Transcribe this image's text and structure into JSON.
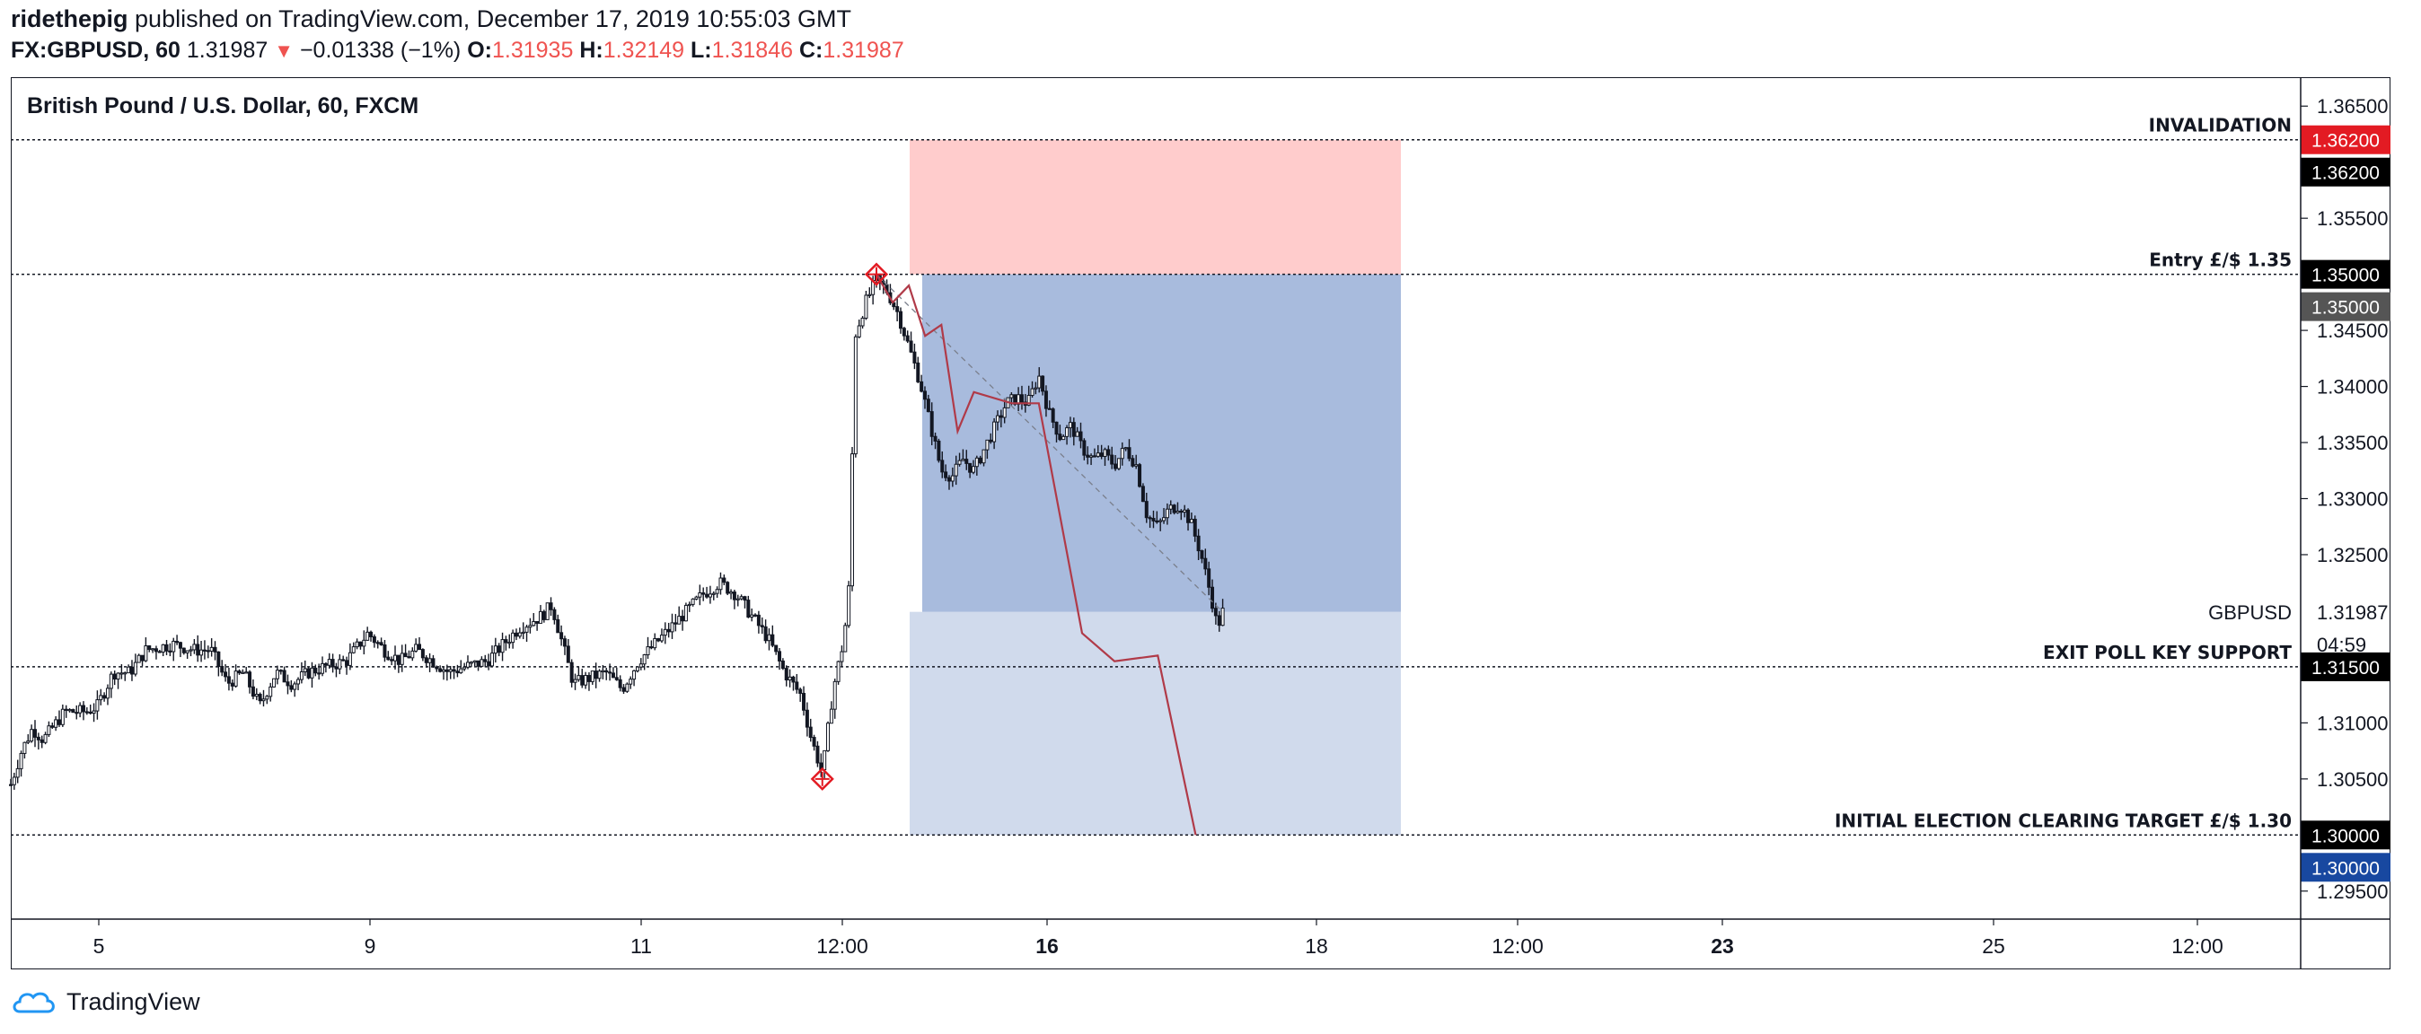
{
  "header": {
    "author": "ridethepig",
    "published_text": "published on TradingView.com, December 17, 2019 10:55:03 GMT",
    "symbol": "FX:GBPUSD, 60",
    "last": "1.31987",
    "change_arrow": "▼",
    "change": "−0.01338 (−1%)",
    "o_label": "O:",
    "o_value": "1.31935",
    "h_label": "H:",
    "h_value": "1.32149",
    "l_label": "L:",
    "l_value": "1.31846",
    "c_label": "C:",
    "c_value": "1.31987"
  },
  "chart_title": "British Pound / U.S. Dollar, 60, FXCM",
  "footer": {
    "brand": "TradingView"
  },
  "colors": {
    "risk_zone": "#ffcccc",
    "reward_zone": "#a8bbdd",
    "target_zone": "#d0daec",
    "projection_line": "#b03a48",
    "invalidation_badge": "#e31b23",
    "target_badge": "#1848a0",
    "entry_badge_secondary": "#555555",
    "label_badge": "#000000",
    "marker": "#e31b23"
  },
  "chart_data": {
    "type": "candlestick",
    "y_range": [
      1.2925,
      1.3675
    ],
    "x_tick_labels": [
      "5",
      "9",
      "11",
      "12:00",
      "16",
      "18",
      "12:00",
      "23",
      "25",
      "12:00"
    ],
    "y_tick_labels": [
      "1.36500",
      "1.35500",
      "1.34500",
      "1.34000",
      "1.33500",
      "1.33000",
      "1.32500",
      "1.31000",
      "1.30500",
      "1.29500"
    ],
    "y_tick_values": [
      1.365,
      1.355,
      1.345,
      1.34,
      1.335,
      1.33,
      1.325,
      1.31,
      1.305,
      1.295
    ],
    "price_path": [
      {
        "t": 0,
        "p": 1.3045
      },
      {
        "t": 0.01,
        "p": 1.3075
      },
      {
        "t": 0.02,
        "p": 1.3095
      },
      {
        "t": 0.03,
        "p": 1.3085
      },
      {
        "t": 0.05,
        "p": 1.311
      },
      {
        "t": 0.07,
        "p": 1.311
      },
      {
        "t": 0.08,
        "p": 1.3115
      },
      {
        "t": 0.095,
        "p": 1.3145
      },
      {
        "t": 0.11,
        "p": 1.3145
      },
      {
        "t": 0.125,
        "p": 1.3165
      },
      {
        "t": 0.15,
        "p": 1.317
      },
      {
        "t": 0.17,
        "p": 1.3165
      },
      {
        "t": 0.185,
        "p": 1.3165
      },
      {
        "t": 0.2,
        "p": 1.3135
      },
      {
        "t": 0.215,
        "p": 1.3145
      },
      {
        "t": 0.23,
        "p": 1.3115
      },
      {
        "t": 0.245,
        "p": 1.3145
      },
      {
        "t": 0.26,
        "p": 1.3135
      },
      {
        "t": 0.275,
        "p": 1.3145
      },
      {
        "t": 0.29,
        "p": 1.315
      },
      {
        "t": 0.31,
        "p": 1.3155
      },
      {
        "t": 0.33,
        "p": 1.318
      },
      {
        "t": 0.345,
        "p": 1.3165
      },
      {
        "t": 0.36,
        "p": 1.3155
      },
      {
        "t": 0.375,
        "p": 1.3165
      },
      {
        "t": 0.39,
        "p": 1.3155
      },
      {
        "t": 0.405,
        "p": 1.3145
      },
      {
        "t": 0.42,
        "p": 1.315
      },
      {
        "t": 0.44,
        "p": 1.3155
      },
      {
        "t": 0.455,
        "p": 1.317
      },
      {
        "t": 0.47,
        "p": 1.3185
      },
      {
        "t": 0.49,
        "p": 1.3195
      },
      {
        "t": 0.5,
        "p": 1.3205
      },
      {
        "t": 0.51,
        "p": 1.317
      },
      {
        "t": 0.52,
        "p": 1.3135
      },
      {
        "t": 0.535,
        "p": 1.314
      },
      {
        "t": 0.55,
        "p": 1.3145
      },
      {
        "t": 0.565,
        "p": 1.313
      },
      {
        "t": 0.58,
        "p": 1.3155
      },
      {
        "t": 0.595,
        "p": 1.317
      },
      {
        "t": 0.61,
        "p": 1.3185
      },
      {
        "t": 0.625,
        "p": 1.32
      },
      {
        "t": 0.64,
        "p": 1.3215
      },
      {
        "t": 0.655,
        "p": 1.3225
      },
      {
        "t": 0.67,
        "p": 1.3215
      },
      {
        "t": 0.685,
        "p": 1.3195
      },
      {
        "t": 0.7,
        "p": 1.3175
      },
      {
        "t": 0.715,
        "p": 1.3145
      },
      {
        "t": 0.73,
        "p": 1.3125
      },
      {
        "t": 0.74,
        "p": 1.3085
      },
      {
        "t": 0.75,
        "p": 1.3055
      },
      {
        "t": 0.76,
        "p": 1.313
      },
      {
        "t": 0.77,
        "p": 1.3175
      },
      {
        "t": 0.775,
        "p": 1.3225
      },
      {
        "t": 0.78,
        "p": 1.3445
      },
      {
        "t": 0.79,
        "p": 1.3475
      },
      {
        "t": 0.8,
        "p": 1.3495
      },
      {
        "t": 0.81,
        "p": 1.3485
      },
      {
        "t": 0.82,
        "p": 1.3465
      },
      {
        "t": 0.83,
        "p": 1.3435
      },
      {
        "t": 0.84,
        "p": 1.3405
      },
      {
        "t": 0.85,
        "p": 1.3365
      },
      {
        "t": 0.86,
        "p": 1.3325
      },
      {
        "t": 0.87,
        "p": 1.332
      },
      {
        "t": 0.88,
        "p": 1.3335
      },
      {
        "t": 0.89,
        "p": 1.3325
      },
      {
        "t": 0.9,
        "p": 1.3345
      },
      {
        "t": 0.91,
        "p": 1.3365
      },
      {
        "t": 0.92,
        "p": 1.3385
      },
      {
        "t": 0.93,
        "p": 1.339
      },
      {
        "t": 0.94,
        "p": 1.3385
      },
      {
        "t": 0.95,
        "p": 1.341
      },
      {
        "t": 0.96,
        "p": 1.3375
      },
      {
        "t": 0.97,
        "p": 1.3355
      },
      {
        "t": 0.98,
        "p": 1.3365
      },
      {
        "t": 0.99,
        "p": 1.3345
      },
      {
        "t": 1.0,
        "p": 1.3335
      },
      {
        "t": 1.01,
        "p": 1.334
      },
      {
        "t": 1.02,
        "p": 1.333
      },
      {
        "t": 1.03,
        "p": 1.3345
      },
      {
        "t": 1.04,
        "p": 1.333
      },
      {
        "t": 1.05,
        "p": 1.3285
      },
      {
        "t": 1.06,
        "p": 1.3275
      },
      {
        "t": 1.07,
        "p": 1.329
      },
      {
        "t": 1.08,
        "p": 1.3295
      },
      {
        "t": 1.09,
        "p": 1.328
      },
      {
        "t": 1.1,
        "p": 1.325
      },
      {
        "t": 1.11,
        "p": 1.321
      },
      {
        "t": 1.115,
        "p": 1.3185
      },
      {
        "t": 1.12,
        "p": 1.3199
      }
    ],
    "levels": [
      {
        "label": "INVALIDATION",
        "price": 1.362,
        "badge": "1.36200",
        "badge_color": "#e31b23",
        "badge2": "1.36200"
      },
      {
        "label": "Entry £/$ 1.35",
        "price": 1.35,
        "badge": "1.35000",
        "badge_color": "#000000",
        "badge2": "1.35000"
      },
      {
        "label": "EXIT POLL KEY SUPPORT",
        "price": 1.315,
        "badge": "1.31500",
        "badge_color": "#000000"
      },
      {
        "label": "INITIAL ELECTION CLEARING TARGET £/$ 1.30",
        "price": 1.3,
        "badge": "1.30000",
        "badge_color": "#000000",
        "badge2": "1.30000"
      }
    ],
    "current_price_label": {
      "symbol": "GBPUSD",
      "price": "1.31987",
      "countdown": "04:59"
    },
    "risk_zone": {
      "price_top": 1.362,
      "price_bottom": 1.35
    },
    "reward_zone": {
      "price_top": 1.35,
      "price_bottom": 1.3199
    },
    "target_zone": {
      "price_top": 1.3199,
      "price_bottom": 1.3
    },
    "projection_path": [
      {
        "t": 0.8,
        "p": 1.35
      },
      {
        "t": 0.815,
        "p": 1.3475
      },
      {
        "t": 0.83,
        "p": 1.349
      },
      {
        "t": 0.845,
        "p": 1.3445
      },
      {
        "t": 0.86,
        "p": 1.3455
      },
      {
        "t": 0.875,
        "p": 1.336
      },
      {
        "t": 0.89,
        "p": 1.3395
      },
      {
        "t": 0.925,
        "p": 1.3385
      },
      {
        "t": 0.95,
        "p": 1.3385
      },
      {
        "t": 0.99,
        "p": 1.318
      },
      {
        "t": 1.02,
        "p": 1.3155
      },
      {
        "t": 1.06,
        "p": 1.316
      },
      {
        "t": 1.095,
        "p": 1.3
      }
    ],
    "trend_dashed": [
      {
        "t": 0.8,
        "p": 1.35
      },
      {
        "t": 1.12,
        "p": 1.3199
      }
    ]
  }
}
